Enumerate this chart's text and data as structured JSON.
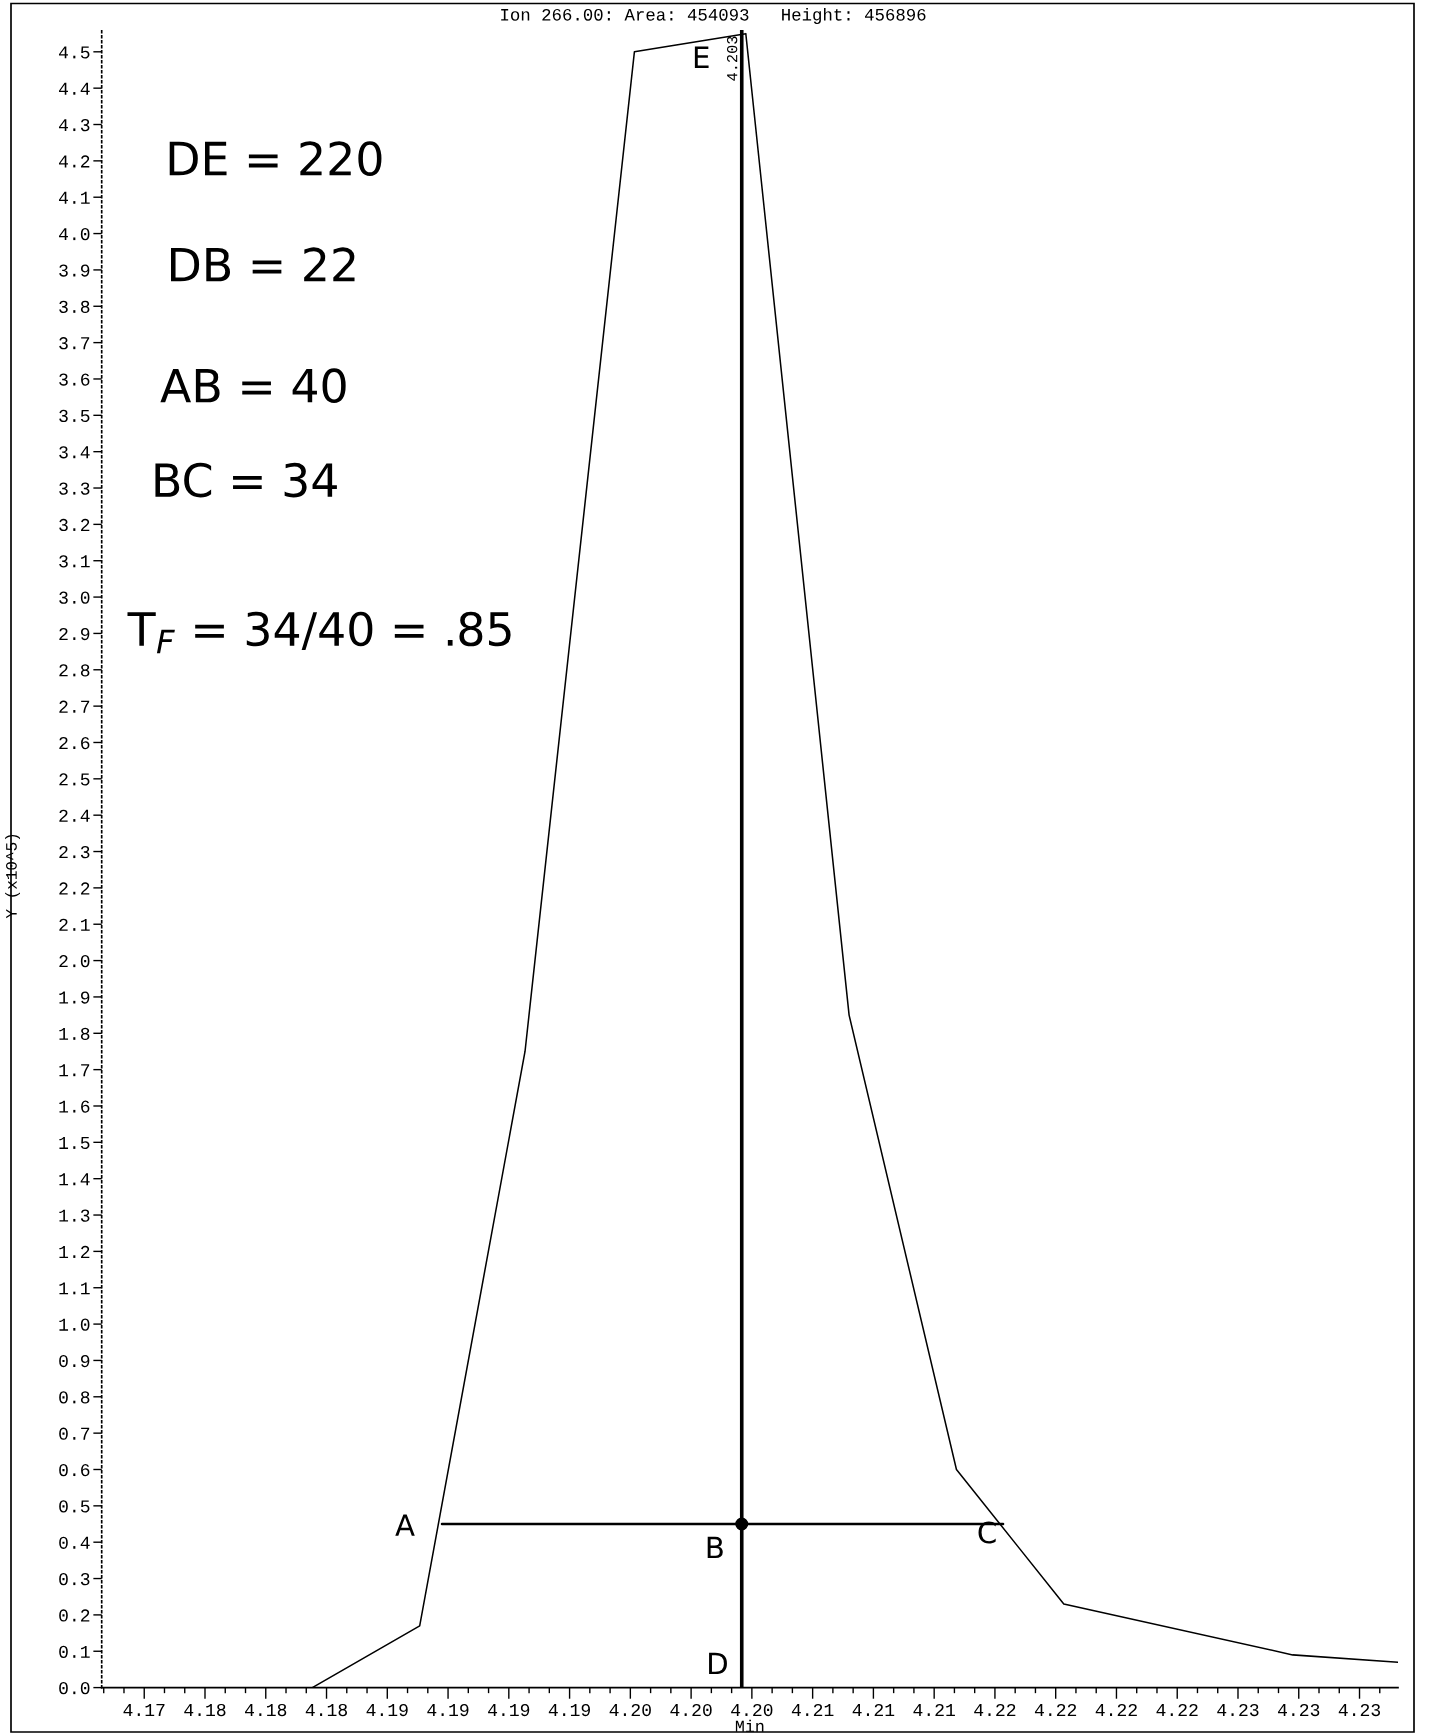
{
  "chart_data": {
    "type": "line",
    "title": "Ion 266.00: Area: 454093   Height: 456896",
    "xlabel": "Min",
    "ylabel": "Y (x10^5)",
    "series": [
      {
        "color": "#000000",
        "x": [
          4.1818,
          4.1871,
          4.1923,
          4.1977,
          4.2032,
          4.2083,
          4.2136,
          4.2189,
          4.2302,
          4.2354
        ],
        "values": [
          0,
          0.17,
          1.75,
          4.5,
          4.55,
          1.85,
          0.6,
          0.23,
          0.09,
          0.07
        ]
      },
      {
        "type": "line",
        "color": "#000000",
        "x": [
          4.1882,
          4.2159
        ],
        "values": [
          0.45,
          0.45
        ]
      },
      {
        "type": "scatter",
        "color": "#000000",
        "marker": "circle",
        "x": [
          4.203
        ],
        "values": [
          0.45
        ]
      }
    ],
    "xlim": [
      4.1714,
      4.2354
    ],
    "ylim": [
      0,
      4.56
    ],
    "xticks": [
      {
        "value": 4.1735,
        "label": "4.17"
      },
      {
        "value": 4.1765,
        "label": "4.18"
      },
      {
        "value": 4.1795,
        "label": "4.18"
      },
      {
        "value": 4.1825,
        "label": "4.18"
      },
      {
        "value": 4.1855,
        "label": "4.19"
      },
      {
        "value": 4.1885,
        "label": "4.19"
      },
      {
        "value": 4.1915,
        "label": "4.19"
      },
      {
        "value": 4.1945,
        "label": "4.19"
      },
      {
        "value": 4.1975,
        "label": "4.20"
      },
      {
        "value": 4.2005,
        "label": "4.20"
      },
      {
        "value": 4.2035,
        "label": "4.20"
      },
      {
        "value": 4.2065,
        "label": "4.21"
      },
      {
        "value": 4.2095,
        "label": "4.21"
      },
      {
        "value": 4.2125,
        "label": "4.21"
      },
      {
        "value": 4.2155,
        "label": "4.22"
      },
      {
        "value": 4.2185,
        "label": "4.22"
      },
      {
        "value": 4.2215,
        "label": "4.22"
      },
      {
        "value": 4.2245,
        "label": "4.22"
      },
      {
        "value": 4.2275,
        "label": "4.23"
      },
      {
        "value": 4.2305,
        "label": "4.23"
      },
      {
        "value": 4.2335,
        "label": "4.23"
      }
    ],
    "yticks": [
      {
        "value": 0,
        "label": "0.0"
      },
      0.1,
      0.2,
      0.3,
      0.4,
      0.5,
      0.6,
      0.7,
      0.8,
      0.9,
      {
        "value": 1,
        "label": "1.0"
      },
      1.1,
      1.2,
      1.3,
      1.4,
      1.5,
      1.6,
      1.7,
      1.8,
      1.9,
      {
        "value": 2,
        "label": "2.0"
      },
      2.1,
      2.2,
      2.3,
      2.4,
      2.5,
      2.6,
      2.7,
      2.8,
      2.9,
      {
        "value": 3,
        "label": "3.0"
      },
      3.1,
      3.2,
      3.3,
      3.4,
      3.5,
      3.6,
      3.7,
      3.8,
      3.9,
      {
        "value": 4,
        "label": "4.0"
      },
      4.1,
      4.2,
      4.3,
      4.4,
      4.5
    ],
    "ref_lines": [
      {
        "axis": "x",
        "value": 4.203,
        "label": "4.203",
        "color": "#000000"
      }
    ],
    "annotations": [
      "DE = 220",
      "DB = 22",
      "AB = 40",
      "BC = 34",
      "T$_{F}$ = 34/40 = .85",
      "A",
      "B",
      "C",
      "D",
      "E"
    ]
  }
}
